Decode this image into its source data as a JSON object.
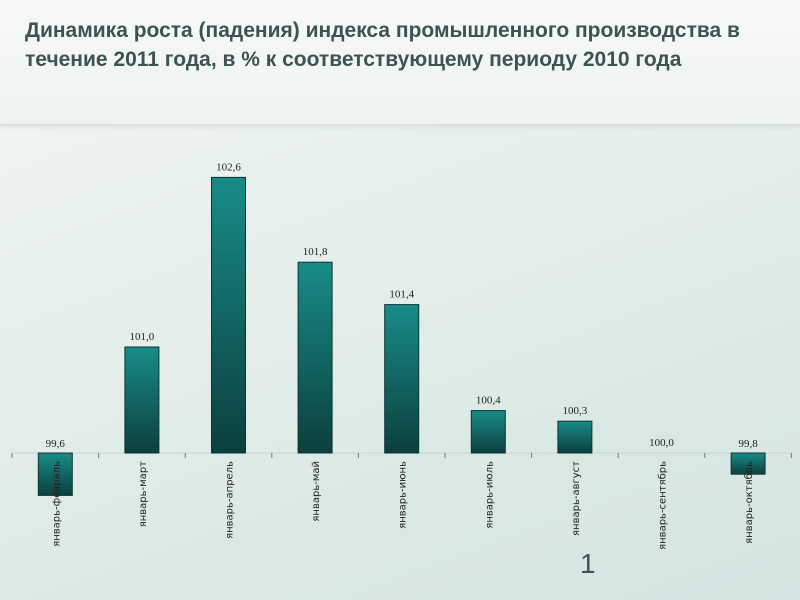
{
  "title": "Динамика роста (падения) индекса промышленного производства в течение 2011 года, в % к соответствующему периоду 2010 года",
  "page_number": "1",
  "chart_data": {
    "type": "bar",
    "title": "Динамика роста (падения) индекса промышленного производства в течение 2011 года, в % к соответствующему периоду 2010 года",
    "xlabel": "",
    "ylabel": "",
    "baseline": 100,
    "categories": [
      "январь-февраль",
      "январь-март",
      "январь-апрель",
      "январь-май",
      "январь-июнь",
      "январь-июль",
      "январь-август",
      "январь-сентябрь",
      "январь-октябрь"
    ],
    "values": [
      99.6,
      101.0,
      102.6,
      101.8,
      101.4,
      100.4,
      100.3,
      100.0,
      99.8
    ],
    "labels": [
      "99,6",
      "101,0",
      "102,6",
      "101,8",
      "101,4",
      "100,4",
      "100,3",
      "100,0",
      "99,8"
    ],
    "ylim": [
      99.5,
      102.8
    ],
    "grid": false,
    "colors": {
      "bar_top": "#188c88",
      "bar_bottom": "#0b3f3d"
    }
  }
}
